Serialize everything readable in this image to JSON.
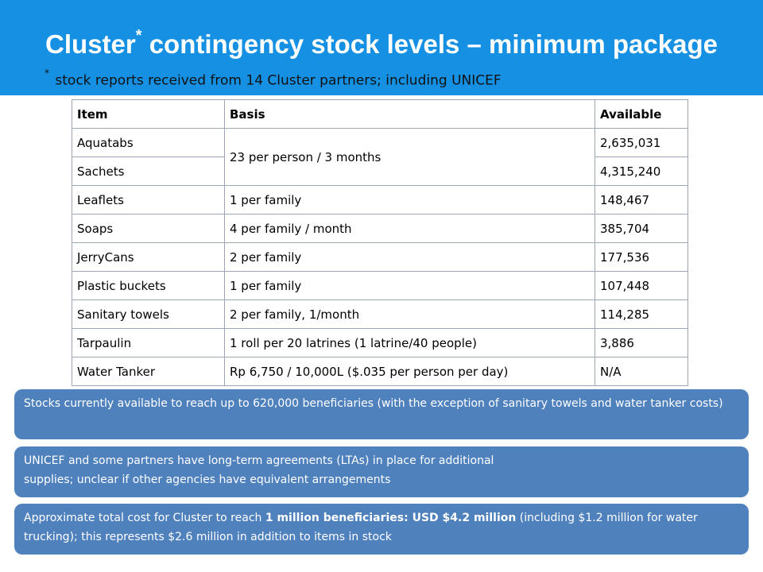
{
  "header": {
    "title_part1": "Cluster",
    "title_mark": "*",
    "title_part2": " contingency stock levels – minimum package",
    "subtitle_mark": "*",
    "subtitle": "stock reports received from 14 Cluster partners; including UNICEF",
    "background_color": "#1590e3"
  },
  "table": {
    "headers": {
      "item": "Item",
      "basis": "Basis",
      "available": "Available"
    },
    "rows": [
      {
        "item": "Aquatabs",
        "basis": "23 per person / 3 months",
        "available": "2,635,031"
      },
      {
        "item": "Sachets",
        "basis": "",
        "available": "4,315,240"
      },
      {
        "item": "Leaflets",
        "basis": "1 per family",
        "available": "148,467"
      },
      {
        "item": "Soaps",
        "basis": "4 per family / month",
        "available": "385,704"
      },
      {
        "item": "JerryCans",
        "basis": "2 per family",
        "available": "177,536"
      },
      {
        "item": "Plastic buckets",
        "basis": "1 per family",
        "available": "107,448"
      },
      {
        "item": "Sanitary towels",
        "basis": "2 per family, 1/month",
        "available": "114,285"
      },
      {
        "item": "Tarpaulin",
        "basis": "1 roll per 20 latrines (1 latrine/40 people)",
        "available": "3,886"
      },
      {
        "item": "Water Tanker",
        "basis": "Rp 6,750 / 10,000L ($.035 per person per day)",
        "available": "N/A"
      }
    ]
  },
  "notes": {
    "note1": "Stocks currently available to reach up to 620,000 beneficiaries (with the  exception of sanitary towels and water tanker costs)",
    "note2_line1": "UNICEF and some partners have long-term agreements (LTAs) in place for additional",
    "note2_line2": "supplies; unclear if other agencies have equivalent arrangements",
    "note3_part1": "Approximate total cost for Cluster to reach ",
    "note3_bold": "1 million beneficiaries: USD $4.2 million",
    "note3_part2": "  (including $1.2 million for water trucking); this represents $2.6 million in addition to items in stock",
    "box_color": "#4f81bd"
  }
}
